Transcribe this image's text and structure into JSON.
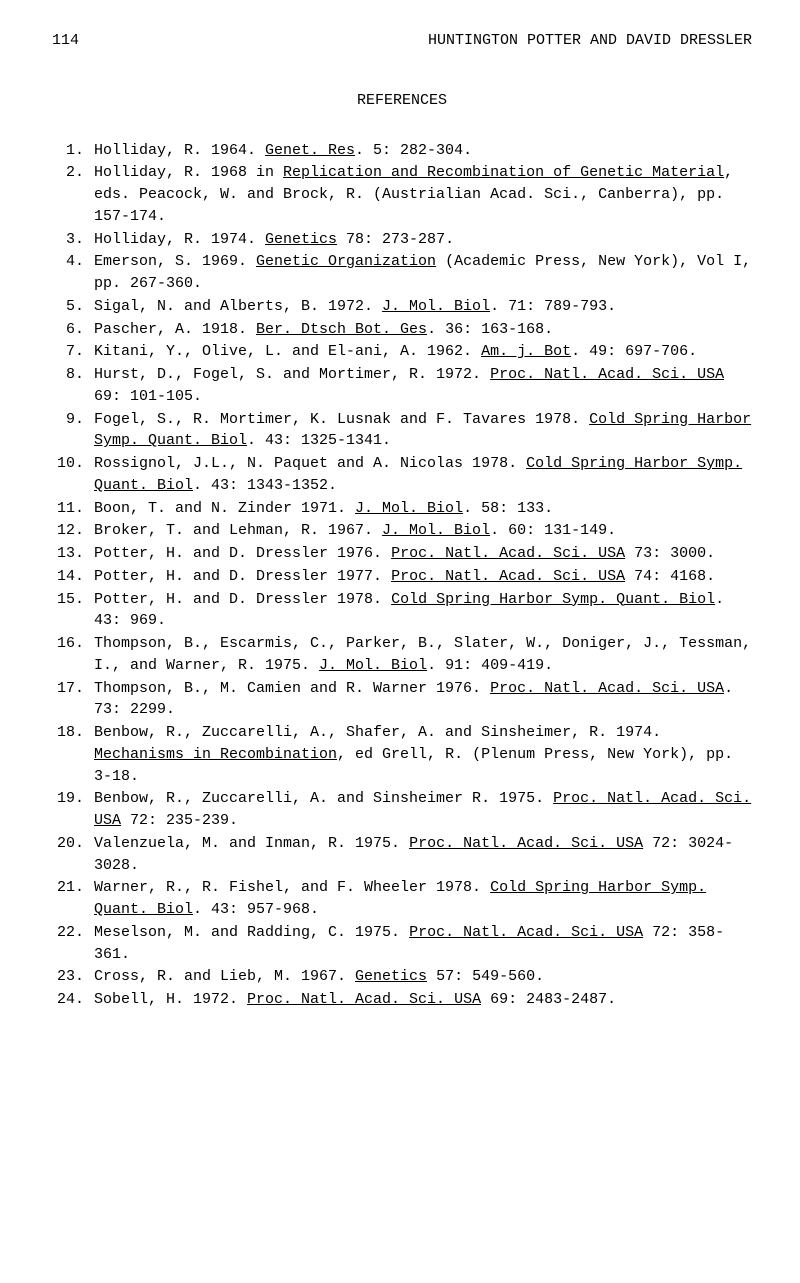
{
  "header": {
    "page_number": "114",
    "title": "HUNTINGTON POTTER AND DAVID DRESSLER"
  },
  "section_title": "REFERENCES",
  "references": [
    {
      "num": "1.",
      "html": "Holliday, R. 1964. <span class='u'>Genet. Res</span>. 5: 282-304."
    },
    {
      "num": "2.",
      "html": "Holliday, R. 1968 in <span class='u'>Replication and Recombination of Genetic Material</span>, eds. Peacock, W. and Brock, R. (Austrialian Acad. Sci., Canberra), pp. 157-174."
    },
    {
      "num": "3.",
      "html": "Holliday, R. 1974. <span class='u'>Genetics</span> 78: 273-287."
    },
    {
      "num": "4.",
      "html": "Emerson, S. 1969. <span class='u'>Genetic Organization</span> (Academic Press, New York), Vol I, pp. 267-360."
    },
    {
      "num": "5.",
      "html": "Sigal, N. and Alberts, B. 1972. <span class='u'>J. Mol. Biol</span>. 71: 789-793."
    },
    {
      "num": "6.",
      "html": "Pascher, A. 1918. <span class='u'>Ber. Dtsch Bot. Ges</span>. 36: 163-168."
    },
    {
      "num": "7.",
      "html": "Kitani, Y., Olive, L. and El-ani, A. 1962. <span class='u'>Am. j. Bot</span>. 49: 697-706."
    },
    {
      "num": "8.",
      "html": "Hurst, D., Fogel, S. and Mortimer, R. 1972. <span class='u'>Proc. Natl. Acad. Sci. USA</span> 69: 101-105."
    },
    {
      "num": "9.",
      "html": "Fogel, S., R. Mortimer, K. Lusnak and F. Tavares 1978. <span class='u'>Cold Spring Harbor Symp. Quant. Biol</span>. 43: 1325-1341."
    },
    {
      "num": "10.",
      "html": "Rossignol, J.L., N. Paquet and A. Nicolas 1978. <span class='u'>Cold Spring Harbor Symp. Quant. Biol</span>. 43: 1343-1352."
    },
    {
      "num": "11.",
      "html": "Boon, T. and N. Zinder 1971. <span class='u'>J. Mol. Biol</span>. 58: 133."
    },
    {
      "num": "12.",
      "html": "Broker, T. and Lehman, R. 1967. <span class='u'>J. Mol. Biol</span>. 60: 131-149."
    },
    {
      "num": "13.",
      "html": "Potter, H. and D. Dressler 1976. <span class='u'>Proc. Natl. Acad. Sci. USA</span> 73: 3000."
    },
    {
      "num": "14.",
      "html": "Potter, H. and D. Dressler 1977. <span class='u'>Proc. Natl. Acad. Sci. USA</span> 74: 4168."
    },
    {
      "num": "15.",
      "html": "Potter, H. and D. Dressler 1978. <span class='u'>Cold Spring Harbor Symp. Quant. Biol</span>. 43: 969."
    },
    {
      "num": "16.",
      "html": "Thompson, B., Escarmis, C., Parker, B., Slater, W., Doniger, J., Tessman, I., and Warner, R. 1975. <span class='u'>J. Mol. Biol</span>. 91: 409-419."
    },
    {
      "num": "17.",
      "html": "Thompson, B., M. Camien and R. Warner 1976. <span class='u'>Proc. Natl. Acad. Sci. USA</span>. 73: 2299."
    },
    {
      "num": "18.",
      "html": "Benbow, R., Zuccarelli, A., Shafer, A. and Sinsheimer, R. 1974. <span class='u'>Mechanisms in Recombination</span>, ed Grell, R. (Plenum Press, New York), pp. 3-18."
    },
    {
      "num": "19.",
      "html": "Benbow, R., Zuccarelli, A. and Sinsheimer R. 1975. <span class='u'>Proc. Natl. Acad. Sci. USA</span> 72: 235-239."
    },
    {
      "num": "20.",
      "html": "Valenzuela, M. and Inman, R. 1975. <span class='u'>Proc. Natl. Acad. Sci. USA</span> 72: 3024-3028."
    },
    {
      "num": "21.",
      "html": "Warner, R., R. Fishel, and F. Wheeler 1978. <span class='u'>Cold Spring Harbor Symp. Quant. Biol</span>. 43: 957-968."
    },
    {
      "num": "22.",
      "html": "Meselson, M. and Radding, C. 1975. <span class='u'>Proc. Natl. Acad. Sci. USA</span> 72: 358-361."
    },
    {
      "num": "23.",
      "html": "Cross, R. and Lieb, M. 1967. <span class='u'>Genetics</span> 57: 549-560."
    },
    {
      "num": "24.",
      "html": "Sobell, H. 1972. <span class='u'>Proc. Natl. Acad. Sci. USA</span> 69: 2483-2487."
    }
  ]
}
